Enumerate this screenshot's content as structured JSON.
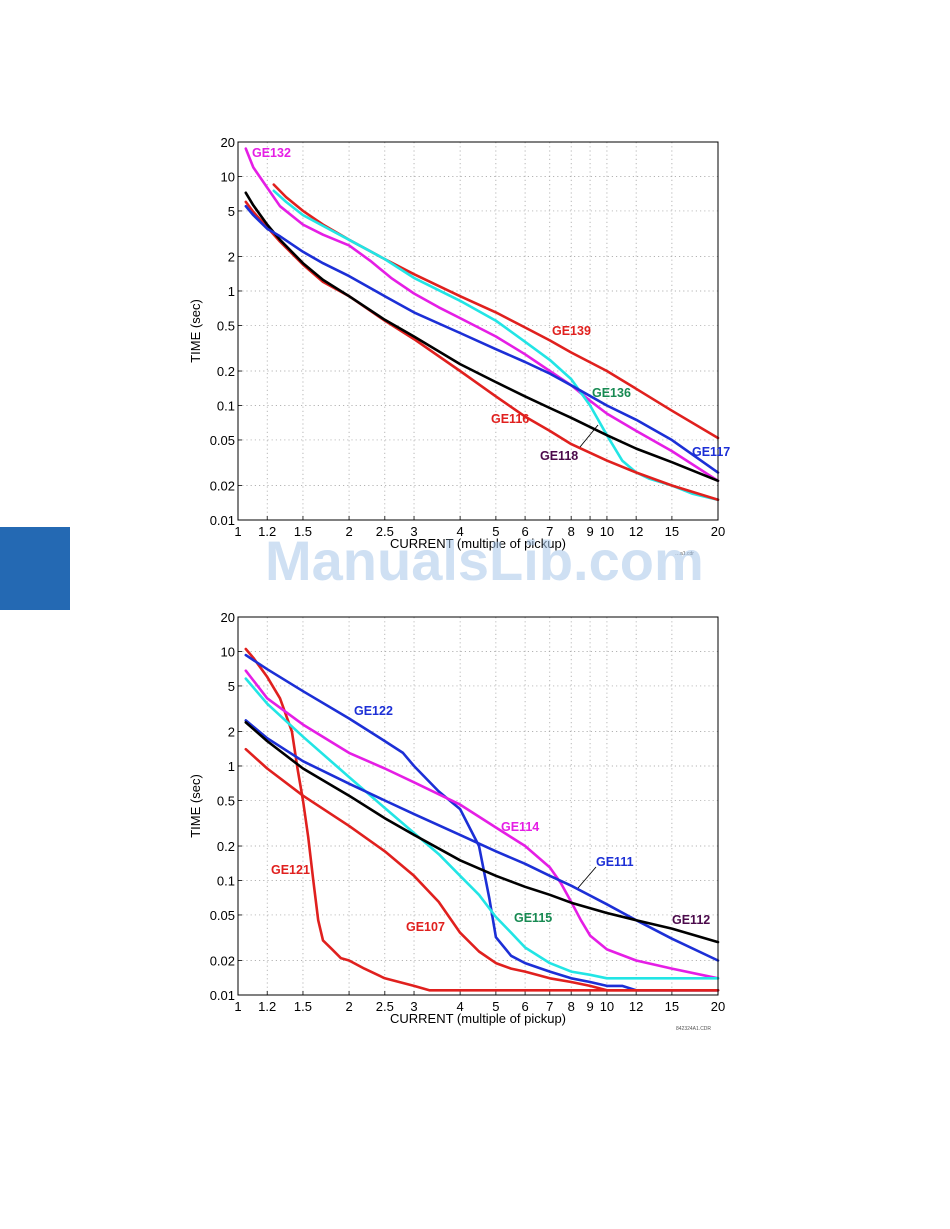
{
  "watermark": "ManualsLib.com",
  "colors": {
    "side_tab": "#2469b3",
    "red": "#e0201e",
    "magenta": "#e51ee5",
    "cyan": "#22e5e5",
    "blue": "#1c2fd6",
    "black": "#000000",
    "green_label": "#178a52",
    "purple_label": "#4b0a4b"
  },
  "chart_data": [
    {
      "type": "line",
      "xscale": "log",
      "yscale": "log",
      "xlim": [
        1,
        20
      ],
      "ylim": [
        0.01,
        20
      ],
      "grid": true,
      "xlabel": "CURRENT  (multiple of pickup)",
      "ylabel": "TIME (sec)",
      "xticks": [
        1,
        1.2,
        1.5,
        2,
        2.5,
        3,
        4,
        5,
        6,
        7,
        8,
        9,
        10,
        12,
        15,
        20
      ],
      "xtick_labels": [
        "1",
        "1.2",
        "1.5",
        "2",
        "2.5",
        "3",
        "4",
        "5",
        "6",
        "7",
        "8",
        "9",
        "10",
        "12",
        "15",
        "20"
      ],
      "yticks": [
        0.01,
        0.02,
        0.05,
        0.1,
        0.2,
        0.5,
        1,
        2,
        5,
        10,
        20
      ],
      "ytick_labels": [
        "0.01",
        "0.02",
        "0.05",
        "0.1",
        "0.2",
        "0.5",
        "1",
        "2",
        "5",
        "10",
        "20"
      ],
      "drawing_code": "…a1.cdr",
      "series": [
        {
          "name": "GE132",
          "color": "#e51ee5",
          "x": [
            1.05,
            1.1,
            1.2,
            1.3,
            1.5,
            1.7,
            2,
            2.3,
            2.6,
            3,
            3.5,
            4,
            5,
            6,
            7,
            8,
            9,
            10,
            12,
            15,
            20
          ],
          "y": [
            17.5,
            12,
            8,
            5.5,
            3.8,
            3.1,
            2.5,
            1.8,
            1.3,
            0.95,
            0.72,
            0.58,
            0.4,
            0.28,
            0.2,
            0.15,
            0.11,
            0.085,
            0.06,
            0.04,
            0.022
          ]
        },
        {
          "name": "GE139",
          "color": "#e0201e",
          "x": [
            1.25,
            1.35,
            1.5,
            1.7,
            2,
            2.5,
            3,
            4,
            5,
            6,
            7,
            8,
            10,
            12,
            15,
            20
          ],
          "y": [
            8.5,
            6.6,
            5,
            3.8,
            2.8,
            1.9,
            1.4,
            0.9,
            0.65,
            0.48,
            0.37,
            0.29,
            0.2,
            0.14,
            0.09,
            0.052
          ]
        },
        {
          "name": "GE136",
          "color": "#22e5e5",
          "x": [
            1.25,
            1.35,
            1.5,
            1.7,
            2,
            2.5,
            3,
            4,
            5,
            6,
            7,
            8,
            9,
            10,
            11,
            12,
            13,
            15,
            17,
            20
          ],
          "y": [
            7.5,
            6,
            4.6,
            3.7,
            2.8,
            1.9,
            1.3,
            0.82,
            0.55,
            0.36,
            0.25,
            0.17,
            0.1,
            0.055,
            0.033,
            0.026,
            0.023,
            0.02,
            0.017,
            0.015
          ]
        },
        {
          "name": "GE116",
          "color": "#e0201e",
          "x": [
            1.05,
            1.1,
            1.2,
            1.3,
            1.5,
            1.7,
            2,
            2.5,
            3,
            4,
            5,
            6,
            7,
            8,
            10,
            12,
            15,
            20
          ],
          "y": [
            6,
            4.9,
            3.6,
            2.7,
            1.7,
            1.2,
            0.9,
            0.55,
            0.38,
            0.2,
            0.12,
            0.08,
            0.06,
            0.046,
            0.033,
            0.026,
            0.02,
            0.015
          ]
        },
        {
          "name": "GE118",
          "color": "#000000",
          "x": [
            1.05,
            1.1,
            1.2,
            1.3,
            1.5,
            1.7,
            2,
            2.5,
            3,
            4,
            5,
            6,
            7,
            8,
            10,
            12,
            15,
            20
          ],
          "y": [
            7.2,
            5.6,
            3.8,
            2.8,
            1.75,
            1.25,
            0.9,
            0.56,
            0.4,
            0.23,
            0.16,
            0.12,
            0.095,
            0.078,
            0.055,
            0.042,
            0.032,
            0.022
          ]
        },
        {
          "name": "GE117",
          "color": "#1c2fd6",
          "x": [
            1.05,
            1.1,
            1.2,
            1.3,
            1.5,
            1.7,
            2,
            2.5,
            3,
            4,
            5,
            6,
            7,
            8,
            10,
            12,
            15,
            20
          ],
          "y": [
            5.5,
            4.6,
            3.5,
            3,
            2.2,
            1.75,
            1.35,
            0.9,
            0.65,
            0.43,
            0.31,
            0.24,
            0.19,
            0.15,
            0.1,
            0.075,
            0.05,
            0.026
          ]
        }
      ],
      "annotations": [
        {
          "text": "GE132",
          "color": "#e51ee5"
        },
        {
          "text": "GE139",
          "color": "#e0201e"
        },
        {
          "text": "GE136",
          "color": "#178a52"
        },
        {
          "text": "GE116",
          "color": "#e0201e"
        },
        {
          "text": "GE118",
          "color": "#4b0a4b"
        },
        {
          "text": "GE117",
          "color": "#1c2fd6"
        }
      ]
    },
    {
      "type": "line",
      "xscale": "log",
      "yscale": "log",
      "xlim": [
        1,
        20
      ],
      "ylim": [
        0.01,
        20
      ],
      "grid": true,
      "xlabel": "CURRENT (multiple of pickup)",
      "ylabel": "TIME (sec)",
      "xticks": [
        1,
        1.2,
        1.5,
        2,
        2.5,
        3,
        4,
        5,
        6,
        7,
        8,
        9,
        10,
        12,
        15,
        20
      ],
      "xtick_labels": [
        "1",
        "1.2",
        "1.5",
        "2",
        "2.5",
        "3",
        "4",
        "5",
        "6",
        "7",
        "8",
        "9",
        "10",
        "12",
        "15",
        "20"
      ],
      "yticks": [
        0.01,
        0.02,
        0.05,
        0.1,
        0.2,
        0.5,
        1,
        2,
        5,
        10,
        20
      ],
      "ytick_labels": [
        "0.01",
        "0.02",
        "0.05",
        "0.1",
        "0.2",
        "0.5",
        "1",
        "2",
        "5",
        "10",
        "20"
      ],
      "drawing_code": "842324A1.CDR",
      "series": [
        {
          "name": "GE121",
          "color": "#e0201e",
          "x": [
            1.05,
            1.1,
            1.2,
            1.3,
            1.4,
            1.45,
            1.5,
            1.55,
            1.6,
            1.65,
            1.7,
            1.8,
            1.9,
            2,
            2.2,
            2.5,
            3,
            3.3,
            3.5,
            4,
            6,
            10,
            20
          ],
          "y": [
            10.5,
            8.8,
            6,
            3.9,
            2,
            0.95,
            0.5,
            0.24,
            0.1,
            0.045,
            0.03,
            0.025,
            0.021,
            0.02,
            0.017,
            0.014,
            0.012,
            0.011,
            0.011,
            0.011,
            0.011,
            0.011,
            0.011
          ]
        },
        {
          "name": "GE122",
          "color": "#1c2fd6",
          "x": [
            1.05,
            1.2,
            1.5,
            2,
            2.5,
            2.8,
            3,
            3.5,
            4,
            4.5,
            4.8,
            5,
            5.5,
            6,
            7,
            8,
            9,
            10,
            11,
            12,
            15,
            20
          ],
          "y": [
            9.3,
            7,
            4.5,
            2.6,
            1.65,
            1.3,
            1.0,
            0.6,
            0.42,
            0.2,
            0.07,
            0.032,
            0.022,
            0.019,
            0.016,
            0.014,
            0.013,
            0.012,
            0.012,
            0.011,
            0.011,
            0.011
          ]
        },
        {
          "name": "GE114",
          "color": "#e51ee5",
          "x": [
            1.05,
            1.2,
            1.5,
            2,
            2.5,
            3,
            4,
            5,
            6,
            7,
            7.5,
            8,
            8.5,
            9,
            10,
            12,
            15,
            20
          ],
          "y": [
            6.8,
            3.9,
            2.3,
            1.3,
            0.95,
            0.72,
            0.46,
            0.29,
            0.2,
            0.13,
            0.095,
            0.065,
            0.045,
            0.033,
            0.025,
            0.02,
            0.017,
            0.014
          ]
        },
        {
          "name": "GE115",
          "color": "#22e5e5",
          "x": [
            1.05,
            1.2,
            1.5,
            2,
            2.5,
            3,
            3.5,
            4,
            4.5,
            5,
            5.5,
            6,
            7,
            8,
            9,
            10,
            11,
            12,
            15,
            20
          ],
          "y": [
            5.8,
            3.5,
            1.8,
            0.8,
            0.43,
            0.26,
            0.17,
            0.11,
            0.075,
            0.048,
            0.035,
            0.026,
            0.019,
            0.016,
            0.015,
            0.014,
            0.014,
            0.014,
            0.014,
            0.014
          ]
        },
        {
          "name": "GE111",
          "color": "#1c2fd6",
          "x": [
            1.05,
            1.2,
            1.5,
            2,
            2.5,
            3,
            4,
            5,
            6,
            7,
            8,
            10,
            12,
            15,
            20
          ],
          "y": [
            2.5,
            1.75,
            1.1,
            0.7,
            0.5,
            0.38,
            0.25,
            0.18,
            0.14,
            0.11,
            0.09,
            0.062,
            0.045,
            0.031,
            0.02
          ]
        },
        {
          "name": "GE112",
          "color": "#000000",
          "x": [
            1.05,
            1.2,
            1.5,
            2,
            2.5,
            3,
            4,
            5,
            6,
            7,
            8,
            10,
            12,
            15,
            20
          ],
          "y": [
            2.4,
            1.65,
            0.95,
            0.55,
            0.35,
            0.25,
            0.15,
            0.11,
            0.088,
            0.075,
            0.064,
            0.052,
            0.045,
            0.038,
            0.029
          ]
        },
        {
          "name": "GE107",
          "color": "#e0201e",
          "x": [
            1.05,
            1.2,
            1.5,
            2,
            2.5,
            3,
            3.5,
            4,
            4.5,
            5,
            5.5,
            6,
            7,
            8,
            9,
            10,
            12,
            15,
            20
          ],
          "y": [
            1.4,
            0.95,
            0.55,
            0.3,
            0.18,
            0.11,
            0.065,
            0.035,
            0.024,
            0.019,
            0.017,
            0.016,
            0.014,
            0.013,
            0.012,
            0.011,
            0.011,
            0.011,
            0.011
          ]
        }
      ],
      "annotations": [
        {
          "text": "GE122",
          "color": "#1c2fd6"
        },
        {
          "text": "GE114",
          "color": "#e51ee5"
        },
        {
          "text": "GE111",
          "color": "#1c2fd6"
        },
        {
          "text": "GE121",
          "color": "#e0201e"
        },
        {
          "text": "GE115",
          "color": "#178a52"
        },
        {
          "text": "GE107",
          "color": "#e0201e"
        },
        {
          "text": "GE112",
          "color": "#4b0a4b"
        }
      ]
    }
  ]
}
